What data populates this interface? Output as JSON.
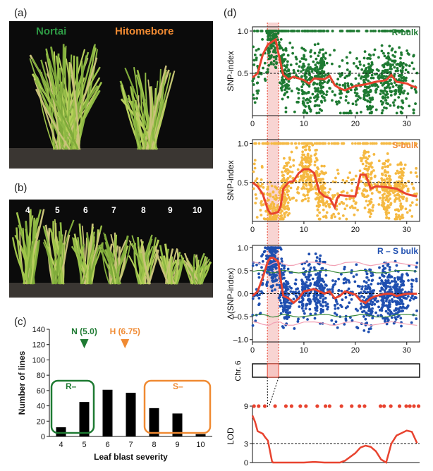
{
  "panels": {
    "a": {
      "label": "(a)",
      "left_name": "Nortai",
      "right_name": "Hitomebore"
    },
    "b": {
      "label": "(b)",
      "scores": [
        "4",
        "5",
        "6",
        "7",
        "8",
        "9",
        "10"
      ]
    },
    "c": {
      "label": "(c)"
    },
    "d": {
      "label": "(d)"
    }
  },
  "colors": {
    "green": "#1e7a32",
    "orange": "#f08a32",
    "blue": "#1f4fb0",
    "red": "#e8432f",
    "yellow": "#f5b942"
  },
  "chart_data": [
    {
      "type": "bar",
      "panel": "c",
      "categories": [
        "4",
        "5",
        "6",
        "7",
        "8",
        "9",
        "10"
      ],
      "values": [
        12,
        45,
        61,
        57,
        37,
        30,
        3
      ],
      "xlabel": "Leaf blast severity",
      "ylabel": "Number of lines",
      "ylim": [
        0,
        140
      ],
      "yticks": [
        "0",
        "20",
        "40",
        "60",
        "80",
        "100",
        "120",
        "140"
      ],
      "annotations": [
        {
          "text": "N (5.0)",
          "x": 5.0,
          "color": "#1e7a32"
        },
        {
          "text": "H (6.75)",
          "x": 6.75,
          "color": "#f08a32"
        }
      ],
      "groups": [
        {
          "text": "R–",
          "categories": [
            "4",
            "5"
          ],
          "color": "#1e7a32"
        },
        {
          "text": "S–",
          "categories": [
            "8",
            "9",
            "10"
          ],
          "color": "#f08a32"
        }
      ]
    },
    {
      "type": "scatter",
      "panel": "d",
      "title": "R-bulk",
      "ylabel": "SNP-index",
      "xlim": [
        0,
        32.5
      ],
      "ylim": [
        0,
        1.05
      ],
      "xticks": [
        "0",
        "10",
        "20",
        "30"
      ],
      "yticks": [
        "0.5",
        "1.0"
      ],
      "threshold": 0.5,
      "sliding_line": {
        "x": [
          0,
          1,
          2,
          3,
          4,
          4.5,
          5,
          6,
          7,
          8,
          10,
          11,
          12,
          14,
          15,
          16,
          17,
          18,
          20,
          22,
          24,
          26,
          27,
          28,
          30,
          31,
          32
        ],
        "y": [
          0.45,
          0.5,
          0.72,
          0.84,
          0.88,
          0.9,
          0.75,
          0.48,
          0.43,
          0.46,
          0.42,
          0.38,
          0.44,
          0.43,
          0.47,
          0.36,
          0.32,
          0.3,
          0.35,
          0.37,
          0.4,
          0.42,
          0.48,
          0.4,
          0.38,
          0.35,
          0.33
        ]
      }
    },
    {
      "type": "scatter",
      "panel": "d",
      "title": "S-bulk",
      "ylabel": "SNP-index",
      "xlim": [
        0,
        32.5
      ],
      "ylim": [
        0,
        1.05
      ],
      "xticks": [
        "0",
        "10",
        "20",
        "30"
      ],
      "yticks": [
        "0.5",
        "1.0"
      ],
      "threshold": 0.5,
      "sliding_line": {
        "x": [
          0,
          1,
          2,
          3,
          3.5,
          4,
          5,
          5.5,
          6,
          7,
          8,
          9,
          10,
          11,
          12,
          13,
          14,
          15,
          16,
          16.5,
          17,
          18,
          20,
          21,
          22,
          23,
          24,
          26,
          27,
          28,
          30,
          32
        ],
        "y": [
          0.5,
          0.45,
          0.35,
          0.15,
          0.1,
          0.1,
          0.12,
          0.2,
          0.42,
          0.5,
          0.52,
          0.62,
          0.67,
          0.67,
          0.62,
          0.38,
          0.32,
          0.3,
          0.18,
          0.3,
          0.34,
          0.33,
          0.32,
          0.6,
          0.6,
          0.42,
          0.45,
          0.44,
          0.43,
          0.42,
          0.35,
          0.32
        ]
      }
    },
    {
      "type": "scatter",
      "panel": "d",
      "title": "R – S bulk",
      "ylabel": "Δ(SNP-index)",
      "xlim": [
        0,
        32.5
      ],
      "ylim": [
        -1.05,
        1.05
      ],
      "xticks": [
        "0",
        "10",
        "20",
        "30"
      ],
      "yticks": [
        "–1.0",
        "–0.5",
        "0.0",
        "0.5",
        "1.0"
      ],
      "threshold": 0,
      "sliding_line": {
        "x": [
          0,
          1,
          2,
          3,
          3.5,
          4,
          5,
          5.5,
          6,
          7,
          8,
          9,
          10,
          12,
          14,
          15,
          16,
          17,
          18,
          20,
          21,
          22,
          23,
          24,
          26,
          27,
          28,
          30,
          32
        ],
        "y": [
          -0.05,
          0.05,
          0.35,
          0.7,
          0.78,
          0.78,
          0.7,
          0.3,
          -0.05,
          -0.1,
          -0.2,
          -0.1,
          0.05,
          0.1,
          0.0,
          0.05,
          -0.1,
          -0.05,
          0.05,
          -0.02,
          -0.15,
          -0.2,
          -0.1,
          -0.05,
          0.0,
          0.0,
          -0.05,
          0.0,
          0.0
        ]
      },
      "confidence_95": 0.48,
      "confidence_99": 0.65
    },
    {
      "type": "line",
      "panel": "d",
      "ylabel": "LOD",
      "xlim": [
        0,
        32.5
      ],
      "ylim": [
        0,
        9
      ],
      "yticks": [
        "0",
        "3",
        "9"
      ],
      "track_label": "Chr. 6",
      "threshold": 3,
      "x": [
        0,
        0.5,
        1,
        2,
        2.5,
        3,
        3.8,
        4,
        6,
        8,
        10,
        12,
        14,
        16,
        17,
        18,
        20,
        21,
        22,
        23,
        24,
        25,
        26,
        27,
        28,
        30,
        31,
        32
      ],
      "y": [
        7.5,
        6.5,
        5.0,
        4.6,
        4.0,
        3.5,
        0.2,
        0.0,
        0.0,
        0.0,
        0.0,
        0.1,
        0.0,
        0.0,
        0.0,
        0.3,
        1.5,
        2.4,
        2.7,
        2.5,
        1.8,
        0.5,
        0.0,
        3.0,
        4.3,
        5.1,
        4.9,
        3.1
      ],
      "marker_positions": [
        0.3,
        1.2,
        2.4,
        4.4,
        6.5,
        7.6,
        9.3,
        10.4,
        12.6,
        14.2,
        15.0,
        17.3,
        19.3,
        20.8,
        21.8,
        24.9,
        25.6,
        26.9,
        28.6,
        29.9,
        30.6,
        31.4,
        32.3
      ],
      "marker_lod": 9
    }
  ]
}
